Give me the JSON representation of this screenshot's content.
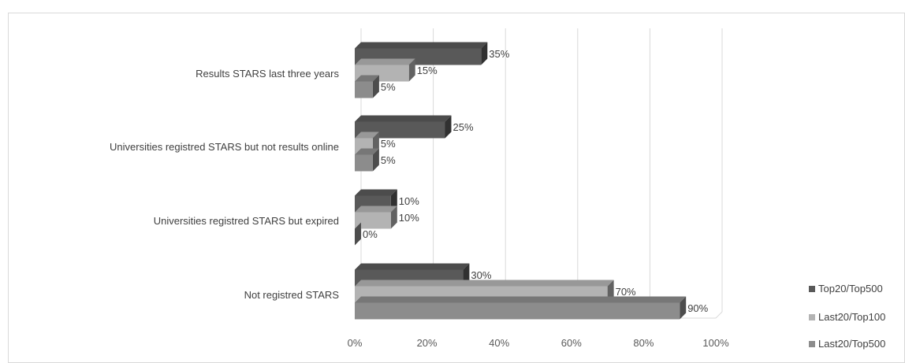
{
  "chart_data": {
    "type": "bar",
    "orientation": "horizontal",
    "style": "3d-clustered",
    "categories": [
      "Results STARS last three years",
      "Universities registred STARS but not results online",
      "Universities registred STARS but expired",
      "Not registred STARS"
    ],
    "series": [
      {
        "name": "Top20/Top500",
        "color": "#595959",
        "values": [
          35,
          25,
          10,
          30
        ],
        "labels": [
          "35%",
          "25%",
          "10%",
          "30%"
        ]
      },
      {
        "name": "Last20/Top100",
        "color": "#b3b3b3",
        "values": [
          15,
          5,
          10,
          70
        ],
        "labels": [
          "15%",
          "5%",
          "10%",
          "70%"
        ]
      },
      {
        "name": "Last20/Top500",
        "color": "#8c8c8c",
        "values": [
          5,
          5,
          0,
          90
        ],
        "labels": [
          "5%",
          "5%",
          "0%",
          "90%"
        ]
      }
    ],
    "xlim": [
      0,
      100
    ],
    "xticks": [
      "0%",
      "20%",
      "40%",
      "60%",
      "80%",
      "100%"
    ],
    "grid": true,
    "legend_position": "right-bottom"
  }
}
